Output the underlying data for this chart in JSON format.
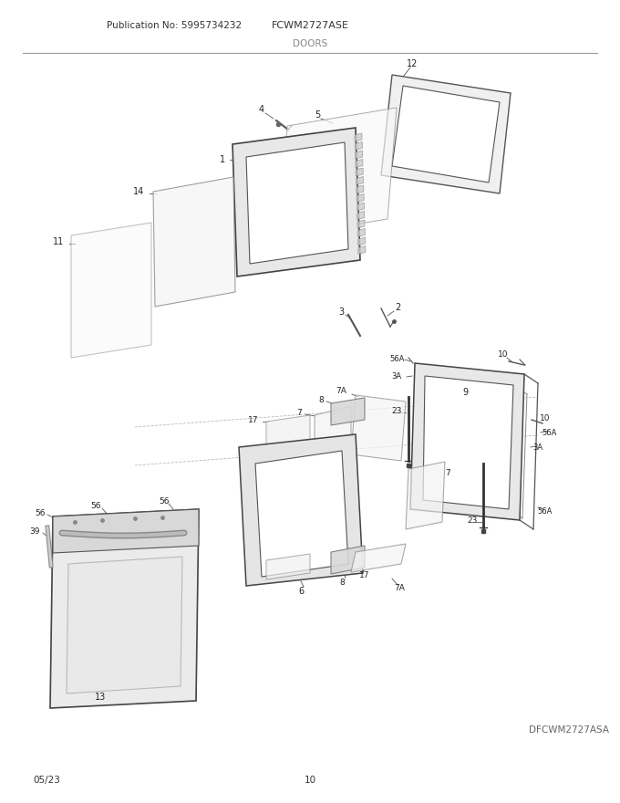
{
  "title_left": "Publication No: 5995734232",
  "title_center": "FCWM2727ASE",
  "section_title": "DOORS",
  "bottom_left": "05/23",
  "bottom_center": "10",
  "bottom_right": "DFCWM2727ASA",
  "bg_color": "#ffffff",
  "line_color": "#555555",
  "text_color": "#333333",
  "figsize": [
    6.8,
    8.8
  ],
  "dpi": 100
}
